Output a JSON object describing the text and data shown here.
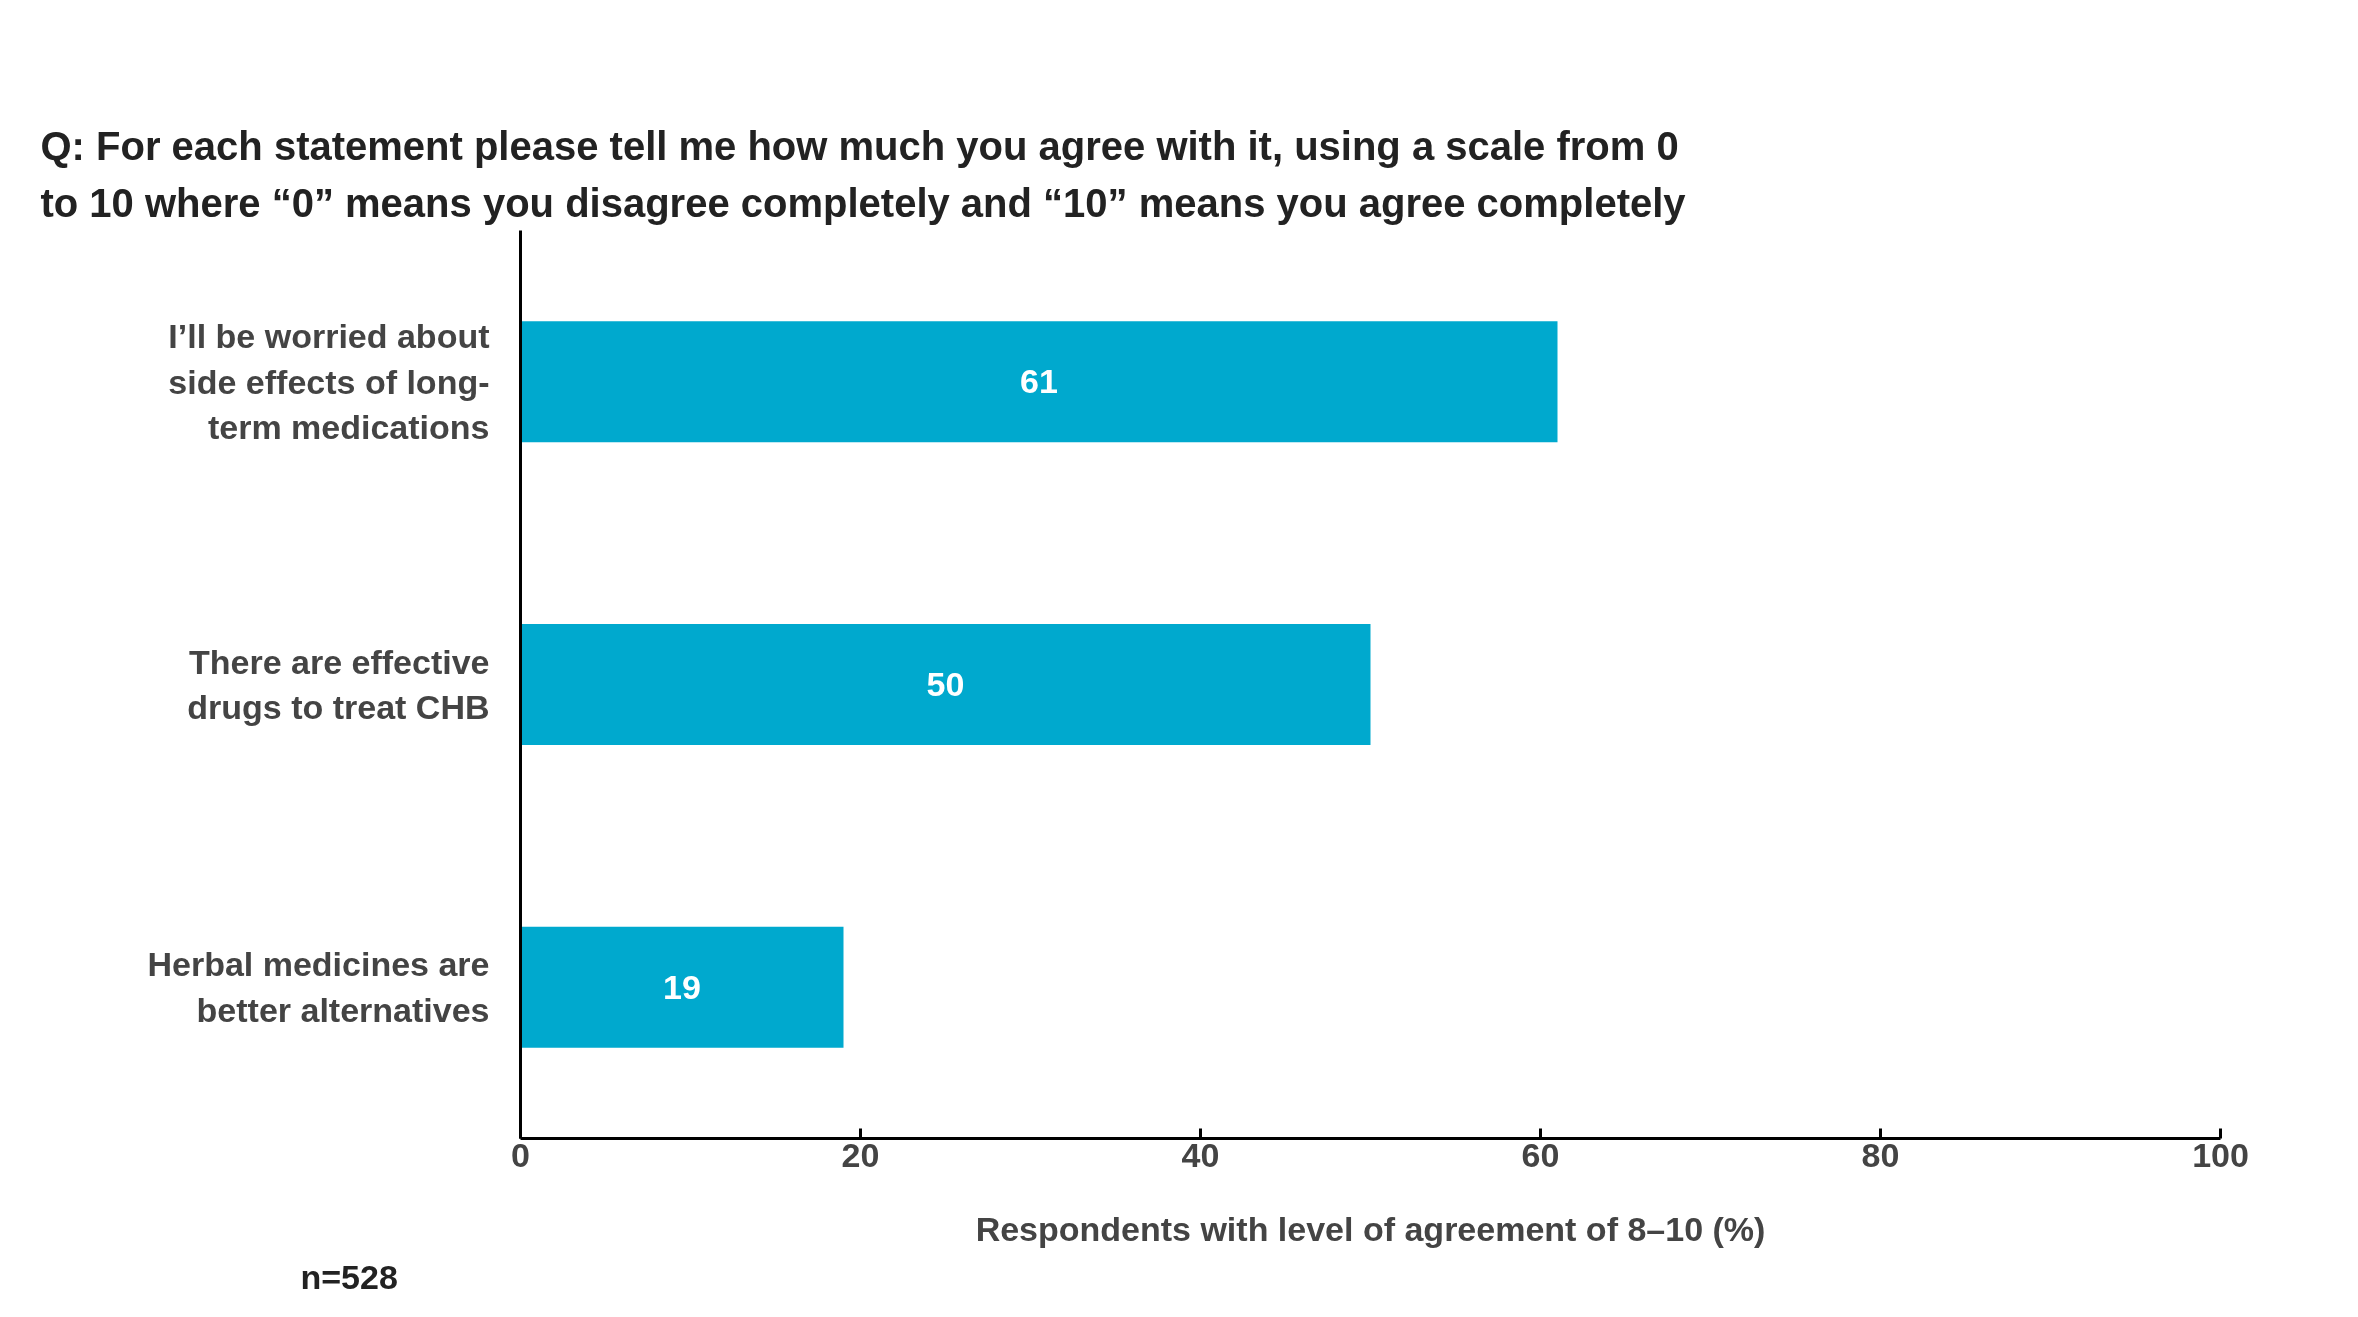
{
  "chart_data": {
    "type": "bar",
    "orientation": "horizontal",
    "title": "Q: For each statement please tell me how much you agree with it, using a scale from 0 to 10 where “0” means you disagree completely and “10” means you agree completely",
    "categories": [
      "I’ll be worried about side effects of long-term medications",
      "There are effective drugs to treat CHB",
      "Herbal medicines are better alternatives"
    ],
    "values": [
      61,
      50,
      19
    ],
    "color": "#00a9ce",
    "data_labels": true,
    "xlim": [
      0,
      100
    ],
    "xticks": [
      0,
      20,
      40,
      60,
      80,
      100
    ],
    "xlabel": "Respondents with level of agreement of 8–10 (%)",
    "annotations": [
      "n=528"
    ],
    "grid": false
  }
}
